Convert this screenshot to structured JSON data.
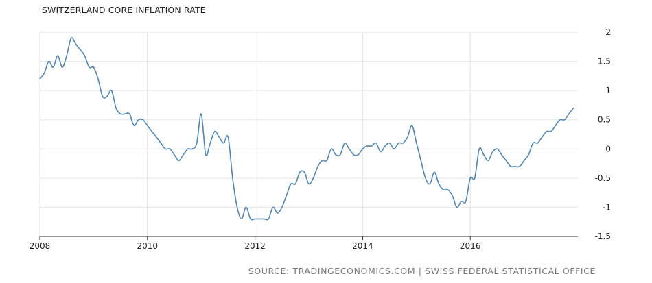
{
  "title": "SWITZERLAND CORE INFLATION RATE",
  "source": "SOURCE: TRADINGECONOMICS.COM | SWISS FEDERAL STATISTICAL OFFICE",
  "colors": {
    "line": "#4f86b5",
    "grid": "#e4e4e4",
    "axis": "#2b2b2b",
    "title": "#222222",
    "source": "#7a7a7a"
  },
  "chart_data": {
    "type": "line",
    "title": "SWITZERLAND CORE INFLATION RATE",
    "xlabel": "",
    "ylabel": "",
    "xlim": [
      2008.0,
      2018.0
    ],
    "ylim": [
      -1.5,
      2.0
    ],
    "grid": true,
    "legend": "none",
    "x_ticks": [
      {
        "value": 2008,
        "label": "2008"
      },
      {
        "value": 2010,
        "label": "2010"
      },
      {
        "value": 2012,
        "label": "2012"
      },
      {
        "value": 2014,
        "label": "2014"
      },
      {
        "value": 2016,
        "label": "2016"
      }
    ],
    "y_ticks": [
      {
        "value": 2.0,
        "label": "2"
      },
      {
        "value": 1.5,
        "label": "1.5"
      },
      {
        "value": 1.0,
        "label": "1"
      },
      {
        "value": 0.5,
        "label": "0.5"
      },
      {
        "value": 0.0,
        "label": "0"
      },
      {
        "value": -0.5,
        "label": "-0.5"
      },
      {
        "value": -1.0,
        "label": "-1"
      },
      {
        "value": -1.5,
        "label": "-1.5"
      }
    ],
    "series": [
      {
        "x": [
          2008.0,
          2008.083,
          2008.167,
          2008.25,
          2008.333,
          2008.417,
          2008.5,
          2008.583,
          2008.667,
          2008.75,
          2008.833,
          2008.917,
          2009.0,
          2009.083,
          2009.167,
          2009.25,
          2009.333,
          2009.417,
          2009.5,
          2009.583,
          2009.667,
          2009.75,
          2009.833,
          2009.917,
          2010.0,
          2010.083,
          2010.167,
          2010.25,
          2010.333,
          2010.417,
          2010.5,
          2010.583,
          2010.667,
          2010.75,
          2010.833,
          2010.917,
          2011.0,
          2011.083,
          2011.167,
          2011.25,
          2011.333,
          2011.417,
          2011.5,
          2011.583,
          2011.667,
          2011.75,
          2011.833,
          2011.917,
          2012.0,
          2012.083,
          2012.167,
          2012.25,
          2012.333,
          2012.417,
          2012.5,
          2012.583,
          2012.667,
          2012.75,
          2012.833,
          2012.917,
          2013.0,
          2013.083,
          2013.167,
          2013.25,
          2013.333,
          2013.417,
          2013.5,
          2013.583,
          2013.667,
          2013.75,
          2013.833,
          2013.917,
          2014.0,
          2014.083,
          2014.167,
          2014.25,
          2014.333,
          2014.417,
          2014.5,
          2014.583,
          2014.667,
          2014.75,
          2014.833,
          2014.917,
          2015.0,
          2015.083,
          2015.167,
          2015.25,
          2015.333,
          2015.417,
          2015.5,
          2015.583,
          2015.667,
          2015.75,
          2015.833,
          2015.917,
          2016.0,
          2016.083,
          2016.167,
          2016.25,
          2016.333,
          2016.417,
          2016.5,
          2016.583,
          2016.667,
          2016.75,
          2016.833,
          2016.917,
          2017.0,
          2017.083,
          2017.167,
          2017.25,
          2017.333,
          2017.417,
          2017.5,
          2017.583,
          2017.667,
          2017.75,
          2017.833,
          2017.917
        ],
        "y": [
          1.2,
          1.3,
          1.5,
          1.4,
          1.6,
          1.4,
          1.6,
          1.9,
          1.8,
          1.7,
          1.6,
          1.4,
          1.4,
          1.2,
          0.9,
          0.9,
          1.0,
          0.7,
          0.6,
          0.6,
          0.6,
          0.4,
          0.5,
          0.5,
          0.4,
          0.3,
          0.2,
          0.1,
          0.0,
          0.0,
          -0.1,
          -0.2,
          -0.1,
          0.0,
          0.0,
          0.1,
          0.6,
          -0.1,
          0.1,
          0.3,
          0.2,
          0.1,
          0.2,
          -0.5,
          -1.0,
          -1.2,
          -1.0,
          -1.2,
          -1.2,
          -1.2,
          -1.2,
          -1.2,
          -1.0,
          -1.1,
          -1.0,
          -0.8,
          -0.6,
          -0.6,
          -0.4,
          -0.4,
          -0.6,
          -0.5,
          -0.3,
          -0.2,
          -0.2,
          0.0,
          -0.1,
          -0.1,
          0.1,
          0.0,
          -0.1,
          -0.1,
          0.0,
          0.05,
          0.05,
          0.1,
          -0.05,
          0.05,
          0.1,
          0.0,
          0.1,
          0.1,
          0.2,
          0.4,
          0.1,
          -0.2,
          -0.5,
          -0.6,
          -0.4,
          -0.6,
          -0.7,
          -0.7,
          -0.8,
          -1.0,
          -0.9,
          -0.9,
          -0.5,
          -0.5,
          0.0,
          -0.1,
          -0.2,
          -0.05,
          0.0,
          -0.1,
          -0.2,
          -0.3,
          -0.3,
          -0.3,
          -0.2,
          -0.1,
          0.1,
          0.1,
          0.2,
          0.3,
          0.3,
          0.4,
          0.5,
          0.5,
          0.6,
          0.7
        ]
      }
    ]
  }
}
